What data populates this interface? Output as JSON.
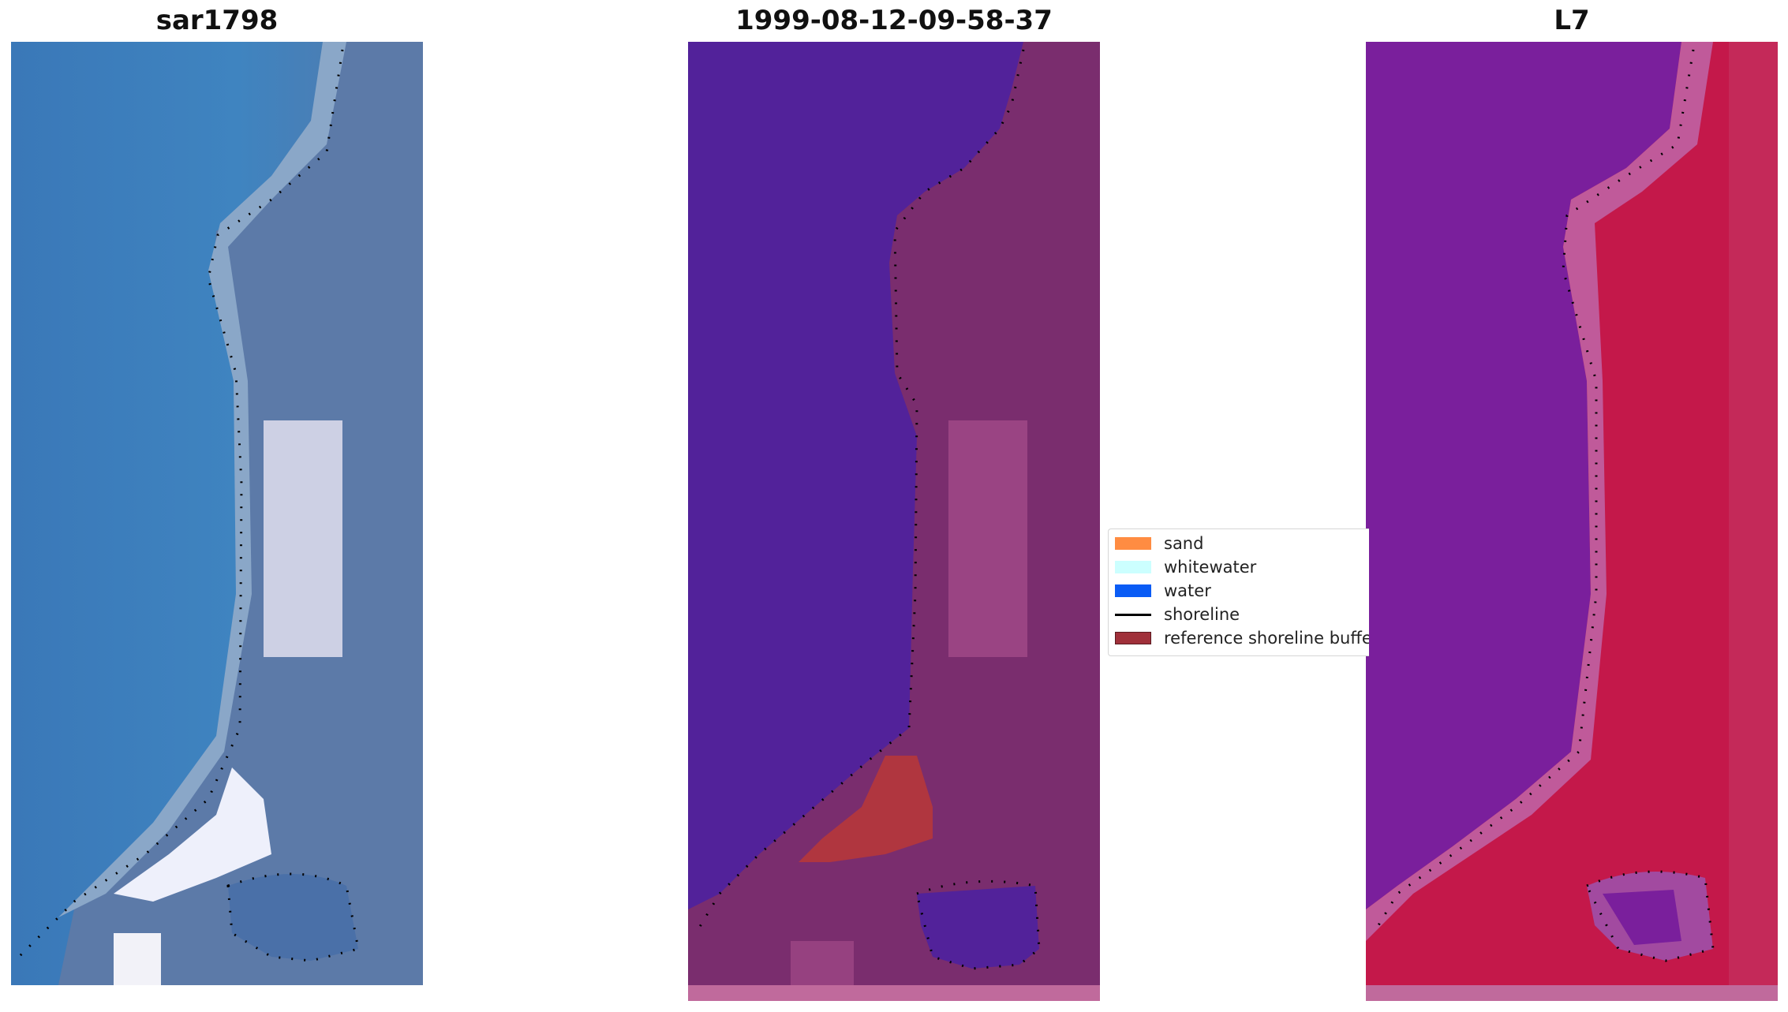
{
  "panels": [
    {
      "title": "sar1798"
    },
    {
      "title": "1999-08-12-09-58-37"
    },
    {
      "title": "L7"
    }
  ],
  "legend": {
    "items": [
      {
        "label": "sand",
        "color": "#ff8c42",
        "kind": "patch"
      },
      {
        "label": "whitewater",
        "color": "#ccffff",
        "kind": "patch"
      },
      {
        "label": "water",
        "color": "#0a5cf5",
        "kind": "patch"
      },
      {
        "label": "shoreline",
        "color": "#000000",
        "kind": "line"
      },
      {
        "label": "reference shoreline buffer",
        "color": "#a0303a",
        "kind": "patch"
      }
    ]
  },
  "colors": {
    "rgb_water": "#3d7fbb",
    "rgb_land": "#5a7fae",
    "rgb_white": "#d6d8ea",
    "class_water": "#52229a",
    "class_land": "#7a2d6e",
    "class_land_light": "#a24a88",
    "class_buffer": "#b0363f",
    "class_strip": "#c06a9c",
    "ndwi_water": "#7a1f9c",
    "ndwi_land": "#c4184a",
    "ndwi_edge": "#c05a9a",
    "shoreline": "#000000"
  }
}
